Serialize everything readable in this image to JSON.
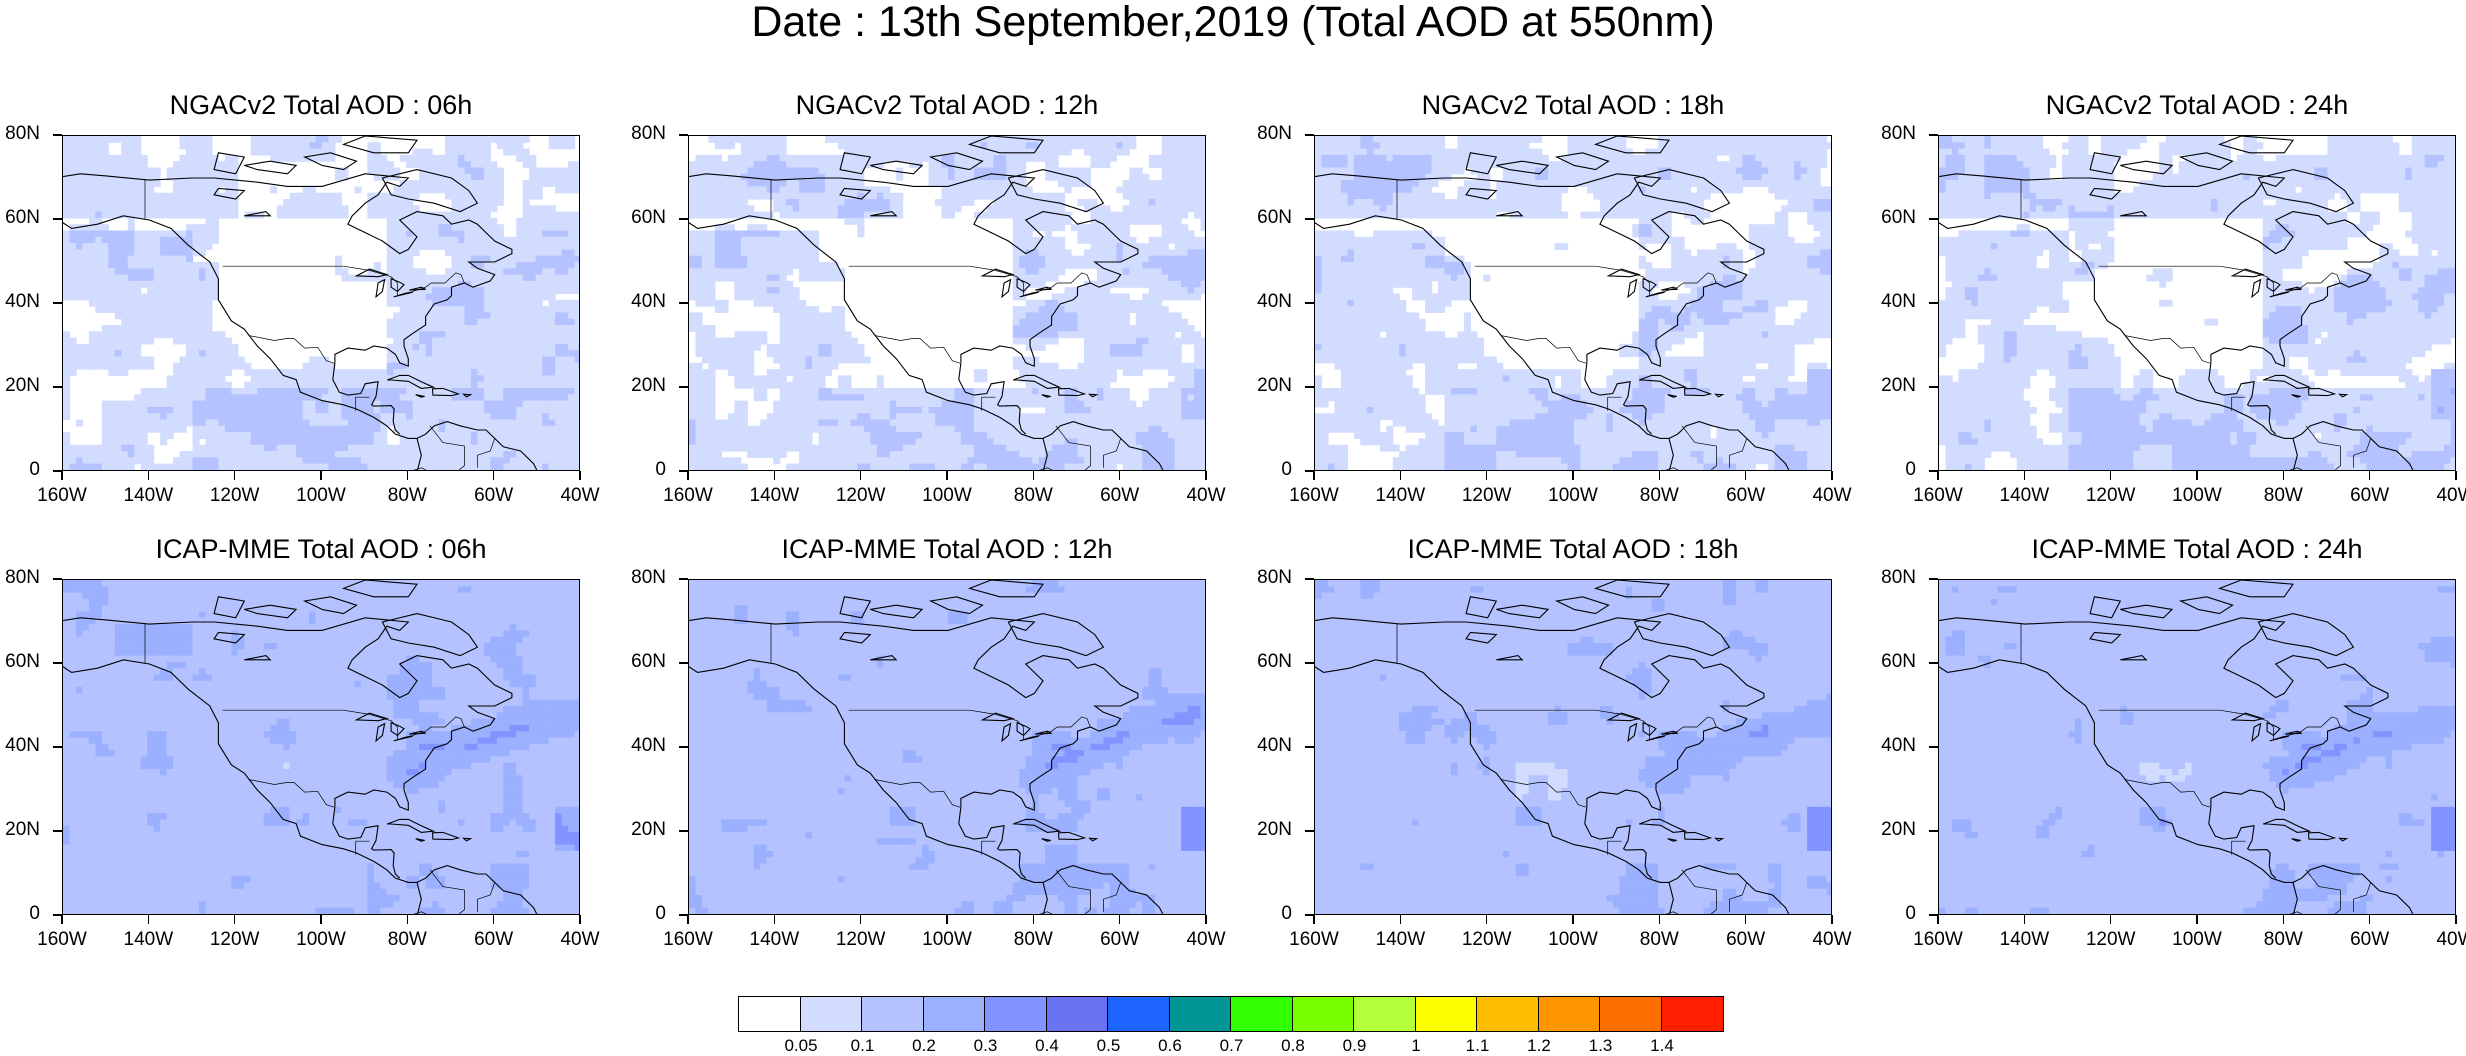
{
  "title": "Date : 13th September,2019 (Total AOD at 550nm)",
  "y_tick_labels": [
    "80N",
    "60N",
    "40N",
    "20N",
    "0"
  ],
  "x_tick_labels": [
    "160W",
    "140W",
    "120W",
    "100W",
    "80W",
    "60W",
    "40W"
  ],
  "panels": [
    {
      "title": "NGACv2 Total AOD : 06h",
      "model": "NGACv2",
      "hour": "06h"
    },
    {
      "title": "NGACv2 Total AOD : 12h",
      "model": "NGACv2",
      "hour": "12h"
    },
    {
      "title": "NGACv2 Total AOD : 18h",
      "model": "NGACv2",
      "hour": "18h"
    },
    {
      "title": "NGACv2 Total AOD : 24h",
      "model": "NGACv2",
      "hour": "24h"
    },
    {
      "title": "ICAP-MME Total AOD : 06h",
      "model": "ICAP-MME",
      "hour": "06h"
    },
    {
      "title": "ICAP-MME Total AOD : 12h",
      "model": "ICAP-MME",
      "hour": "12h"
    },
    {
      "title": "ICAP-MME Total AOD : 18h",
      "model": "ICAP-MME",
      "hour": "18h"
    },
    {
      "title": "ICAP-MME Total AOD : 24h",
      "model": "ICAP-MME",
      "hour": "24h"
    }
  ],
  "colorbar": {
    "labels": [
      "0.05",
      "0.1",
      "0.2",
      "0.3",
      "0.4",
      "0.5",
      "0.6",
      "0.7",
      "0.8",
      "0.9",
      "1",
      "1.1",
      "1.2",
      "1.3",
      "1.4"
    ],
    "colors": [
      "#ffffff",
      "#d2dcff",
      "#b4c3ff",
      "#9bb0ff",
      "#8294ff",
      "#6a72f4",
      "#1e64ff",
      "#009696",
      "#32ff00",
      "#78ff00",
      "#b4ff3c",
      "#ffff00",
      "#ffbe00",
      "#ff9600",
      "#ff6e00",
      "#ff1e00"
    ]
  },
  "colors": {
    "land_outline": "#000000",
    "background": "#ffffff"
  }
}
